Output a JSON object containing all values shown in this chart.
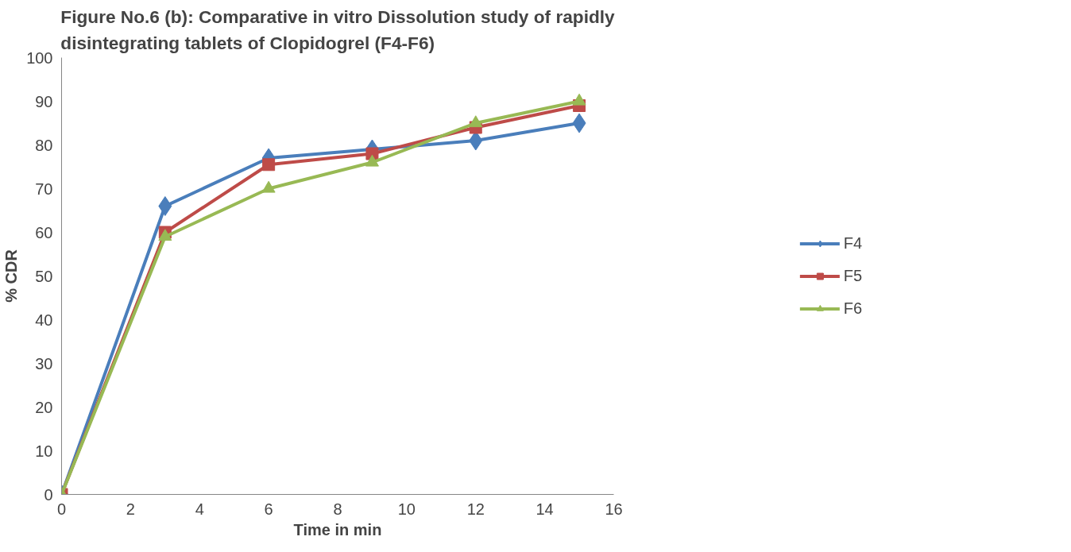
{
  "chart_data": {
    "type": "line",
    "title": "Figure No.6 (b): Comparative in vitro Dissolution study of rapidly disintegrating tablets of Clopidogrel (F4-F6)",
    "xlabel": "Time in min",
    "ylabel": "% CDR",
    "x": [
      0,
      3,
      6,
      9,
      12,
      15
    ],
    "series": [
      {
        "name": "F4",
        "color": "#4a7ebb",
        "marker": "diamond",
        "values": [
          0,
          66,
          77,
          79,
          81,
          85
        ]
      },
      {
        "name": "F5",
        "color": "#be4b48",
        "marker": "square",
        "values": [
          0,
          60,
          75.5,
          78,
          84,
          89
        ]
      },
      {
        "name": "F6",
        "color": "#98b954",
        "marker": "triangle",
        "values": [
          0,
          59,
          70,
          76,
          85,
          90
        ]
      }
    ],
    "xlim": [
      0,
      16
    ],
    "xticks": [
      0,
      2,
      4,
      6,
      8,
      10,
      12,
      14,
      16
    ],
    "ylim": [
      0,
      100
    ],
    "yticks": [
      0,
      10,
      20,
      30,
      40,
      50,
      60,
      70,
      80,
      90,
      100
    ],
    "grid": false,
    "legend": "right",
    "line_style": "solid"
  }
}
